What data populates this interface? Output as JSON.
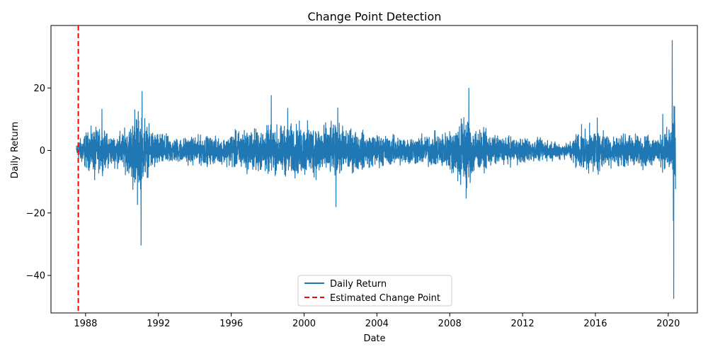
{
  "chart_data": {
    "type": "line",
    "title": "Change Point Detection",
    "xlabel": "Date",
    "ylabel": "Daily Return",
    "xlim": [
      1986.1,
      2021.6
    ],
    "ylim": [
      -52,
      40
    ],
    "x_ticks": [
      1988,
      1992,
      1996,
      2000,
      2004,
      2008,
      2012,
      2016,
      2020
    ],
    "x_tick_labels": [
      "1988",
      "1992",
      "1996",
      "2000",
      "2004",
      "2008",
      "2012",
      "2016",
      "2020"
    ],
    "y_ticks": [
      -40,
      -20,
      0,
      20
    ],
    "y_tick_labels": [
      "−40",
      "−20",
      "0",
      "20"
    ],
    "grid": false,
    "legend_position": "bottom-center",
    "change_point": 1987.6,
    "series": [
      {
        "name": "Daily Return",
        "color": "#1f77b4",
        "style": "solid",
        "x_start": 1987.5,
        "x_end": 2020.4,
        "envelope": [
          [
            1987.5,
            1.2
          ],
          [
            1987.9,
            3.5
          ],
          [
            1988.5,
            4.5
          ],
          [
            1989.0,
            4.0
          ],
          [
            1989.5,
            3.0
          ],
          [
            1990.3,
            4.5
          ],
          [
            1990.9,
            8.0
          ],
          [
            1991.4,
            5.0
          ],
          [
            1992.0,
            3.5
          ],
          [
            1993.0,
            2.5
          ],
          [
            1994.5,
            3.0
          ],
          [
            1995.5,
            2.5
          ],
          [
            1996.3,
            4.0
          ],
          [
            1997.5,
            4.5
          ],
          [
            1998.5,
            5.0
          ],
          [
            2000.5,
            5.5
          ],
          [
            2002.0,
            5.0
          ],
          [
            2003.5,
            3.5
          ],
          [
            2005.0,
            3.0
          ],
          [
            2006.5,
            3.0
          ],
          [
            2008.0,
            4.0
          ],
          [
            2008.8,
            8.0
          ],
          [
            2009.5,
            4.5
          ],
          [
            2010.5,
            3.0
          ],
          [
            2012.5,
            2.5
          ],
          [
            2013.5,
            2.0
          ],
          [
            2014.5,
            1.5
          ],
          [
            2015.0,
            4.0
          ],
          [
            2016.0,
            4.5
          ],
          [
            2017.0,
            3.0
          ],
          [
            2018.3,
            3.5
          ],
          [
            2019.5,
            3.0
          ],
          [
            2020.1,
            5.0
          ],
          [
            2020.4,
            12.0
          ]
        ],
        "spikes": [
          [
            1988.9,
            13.2
          ],
          [
            1988.5,
            -9.4
          ],
          [
            1990.7,
            13.0
          ],
          [
            1990.85,
            -17.3
          ],
          [
            1991.1,
            18.9
          ],
          [
            1991.05,
            -30.3
          ],
          [
            1991.25,
            10.2
          ],
          [
            1990.6,
            -12.5
          ],
          [
            1998.2,
            17.6
          ],
          [
            1999.1,
            13.5
          ],
          [
            2001.85,
            13.6
          ],
          [
            2001.75,
            -18.0
          ],
          [
            2009.05,
            19.9
          ],
          [
            2008.9,
            -15.3
          ],
          [
            2008.6,
            -10.9
          ],
          [
            2016.1,
            10.4
          ],
          [
            2019.7,
            11.6
          ],
          [
            2020.22,
            35.2
          ],
          [
            2020.28,
            -22.4
          ],
          [
            2020.3,
            -47.4
          ],
          [
            2020.35,
            14.0
          ],
          [
            2020.32,
            6.0
          ]
        ]
      }
    ],
    "legend": [
      {
        "label": "Daily Return",
        "color": "#1f77b4",
        "style": "solid"
      },
      {
        "label": "Estimated Change Point",
        "color": "#ff0000",
        "style": "dashed"
      }
    ]
  }
}
